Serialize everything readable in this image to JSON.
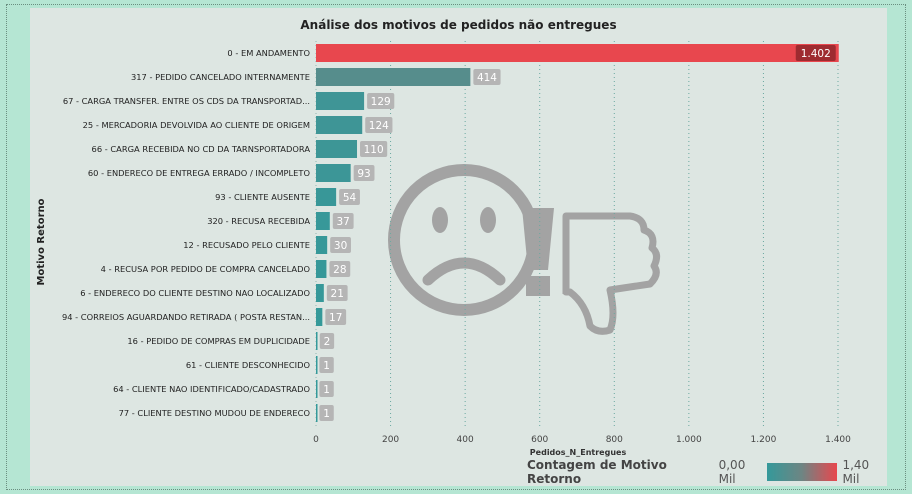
{
  "chart_data": {
    "type": "bar",
    "orientation": "horizontal",
    "title": "Análise dos motivos de pedidos não entregues",
    "xlabel": "Pedidos_N_Entregues",
    "ylabel": "Motivo Retorno",
    "xlim": [
      0,
      1400
    ],
    "x_ticks": [
      "0",
      "200",
      "400",
      "600",
      "800",
      "1.000",
      "1.200",
      "1.400"
    ],
    "x_tick_values": [
      0,
      200,
      400,
      600,
      800,
      1000,
      1200,
      1400
    ],
    "grid": "vertical dotted",
    "categories": [
      "0 - EM ANDAMENTO",
      "317 - PEDIDO CANCELADO INTERNAMENTE",
      "67 - CARGA TRANSFER. ENTRE OS CDS DA TRANSPORTAD...",
      "25 - MERCADORIA DEVOLVIDA AO CLIENTE DE ORIGEM",
      "66 - CARGA RECEBIDA NO CD DA TARNSPORTADORA",
      "60 - ENDERECO DE ENTREGA ERRADO / INCOMPLETO",
      "93 - CLIENTE AUSENTE",
      "320 - RECUSA RECEBIDA",
      "12 - RECUSADO PELO CLIENTE",
      "4 - RECUSA POR PEDIDO DE COMPRA CANCELADO",
      "6 - ENDERECO DO CLIENTE DESTINO NAO LOCALIZADO",
      "94 - CORREIOS AGUARDANDO RETIRADA ( POSTA RESTAN...",
      "16 - PEDIDO DE COMPRAS EM DUPLICIDADE",
      "61 - CLIENTE DESCONHECIDO",
      "64 - CLIENTE NAO IDENTIFICADO/CADASTRADO",
      "77 - CLIENTE DESTINO MUDOU DE ENDERECO"
    ],
    "values": [
      1402,
      414,
      129,
      124,
      110,
      93,
      54,
      37,
      30,
      28,
      21,
      17,
      2,
      1,
      1,
      1
    ],
    "value_labels": [
      "1.402",
      "414",
      "129",
      "124",
      "110",
      "93",
      "54",
      "37",
      "30",
      "28",
      "21",
      "17",
      "2",
      "1",
      "1",
      "1"
    ],
    "colors": {
      "low": "#34999a",
      "mid": "#6e8583",
      "high": "#e8474e"
    },
    "legend": {
      "title": "Contagem de Motivo Retorno",
      "min_label": "0,00 Mil",
      "max_label": "1,40 Mil",
      "placement": "bottom-right"
    },
    "watermark_icons": [
      "sad-face-icon",
      "exclamation-icon",
      "thumbs-down-icon"
    ]
  }
}
